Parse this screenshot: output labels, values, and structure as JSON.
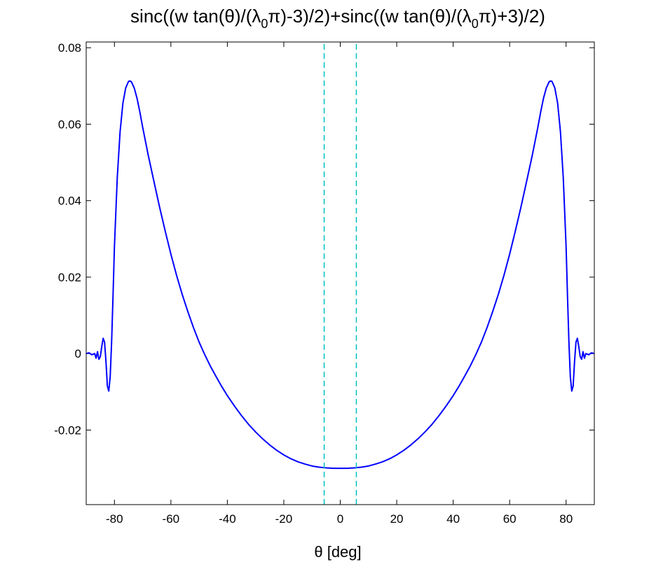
{
  "chart_data": {
    "type": "line",
    "title": {
      "p1": "sinc((w tan(θ)/(λ",
      "s1": "0",
      "p2": "π)-3)/2)+sinc((w tan(θ)/(λ",
      "s2": "0",
      "p3": "π)+3)/2)"
    },
    "xlabel": "θ [deg]",
    "ylabel": "",
    "xlim": [
      -90,
      90
    ],
    "ylim": [
      -0.0395,
      0.0815
    ],
    "xticks": [
      -80,
      -60,
      -40,
      -20,
      0,
      20,
      40,
      60,
      80
    ],
    "xtick_labels": [
      "-80",
      "-60",
      "-40",
      "-20",
      "0",
      "20",
      "40",
      "60",
      "80"
    ],
    "yticks": [
      -0.02,
      0,
      0.02,
      0.04,
      0.06,
      0.08
    ],
    "ytick_labels": [
      "-0.02",
      "0",
      "0.02",
      "0.04",
      "0.06",
      "0.08"
    ],
    "grid": false,
    "series": [
      {
        "color": "#0000ff",
        "style": "solid",
        "x": [
          -90,
          -89,
          -88,
          -87,
          -86.5,
          -86,
          -85.5,
          -85,
          -84.5,
          -84,
          -83.5,
          -83,
          -82.5,
          -82,
          -81.5,
          -81,
          -80.5,
          -80,
          -79,
          -78,
          -77,
          -76,
          -75,
          -74.5,
          -74,
          -73,
          -72,
          -71,
          -70,
          -68,
          -66,
          -64,
          -62,
          -60,
          -58,
          -56,
          -54,
          -52,
          -50,
          -48,
          -46,
          -44,
          -42,
          -40,
          -37.5,
          -35,
          -32.5,
          -30,
          -27.5,
          -25,
          -22.5,
          -20,
          -17.5,
          -15,
          -12.5,
          -10,
          -7.5,
          -5,
          -2.5,
          0,
          2.5,
          5,
          7.5,
          10,
          12.5,
          15,
          17.5,
          20,
          22.5,
          25,
          27.5,
          30,
          32.5,
          35,
          37.5,
          40,
          42,
          44,
          46,
          48,
          50,
          52,
          54,
          56,
          58,
          60,
          62,
          64,
          66,
          68,
          70,
          71,
          72,
          73,
          74,
          74.5,
          75,
          76,
          77,
          78,
          79,
          80,
          80.5,
          81,
          81.5,
          82,
          82.5,
          83,
          83.5,
          84,
          84.5,
          85,
          85.5,
          86,
          86.5,
          87,
          88,
          89,
          90
        ],
        "y": [
          0,
          0.0002,
          -0.0003,
          0,
          -0.0012,
          0.0005,
          -0.0015,
          -0.0008,
          0.0018,
          0.004,
          0.003,
          -0.002,
          -0.0085,
          -0.0098,
          -0.006,
          0.003,
          0.015,
          0.028,
          0.046,
          0.058,
          0.0655,
          0.0695,
          0.0712,
          0.0713,
          0.0711,
          0.0695,
          0.0668,
          0.0632,
          0.0592,
          0.0518,
          0.045,
          0.0383,
          0.032,
          0.026,
          0.0205,
          0.0155,
          0.011,
          0.0068,
          0.003,
          -0.0003,
          -0.0033,
          -0.006,
          -0.0086,
          -0.011,
          -0.0137,
          -0.0162,
          -0.0185,
          -0.0205,
          -0.0223,
          -0.0239,
          -0.0253,
          -0.0265,
          -0.0275,
          -0.0283,
          -0.0289,
          -0.0294,
          -0.0297,
          -0.0299,
          -0.03,
          -0.03,
          -0.03,
          -0.0299,
          -0.0297,
          -0.0294,
          -0.0289,
          -0.0283,
          -0.0275,
          -0.0265,
          -0.0253,
          -0.0239,
          -0.0223,
          -0.0205,
          -0.0185,
          -0.0162,
          -0.0137,
          -0.011,
          -0.0086,
          -0.006,
          -0.0033,
          -0.0003,
          0.003,
          0.0068,
          0.011,
          0.0155,
          0.0205,
          0.026,
          0.032,
          0.0383,
          0.045,
          0.0518,
          0.0592,
          0.0632,
          0.0668,
          0.0695,
          0.0711,
          0.0713,
          0.0712,
          0.0695,
          0.0655,
          0.058,
          0.046,
          0.028,
          0.015,
          0.003,
          -0.006,
          -0.0098,
          -0.0085,
          -0.002,
          0.003,
          0.004,
          0.0018,
          -0.0008,
          -0.0015,
          0.0005,
          -0.0012,
          0,
          -0.0003,
          0.0002,
          0
        ]
      },
      {
        "color": "#00bfbf",
        "style": "dashed",
        "x": [
          -5.7,
          -5.7
        ],
        "y": [
          -0.0395,
          0.0815
        ]
      },
      {
        "color": "#00bfbf",
        "style": "dashed",
        "x": [
          5.7,
          5.7
        ],
        "y": [
          -0.0395,
          0.0815
        ]
      }
    ]
  }
}
